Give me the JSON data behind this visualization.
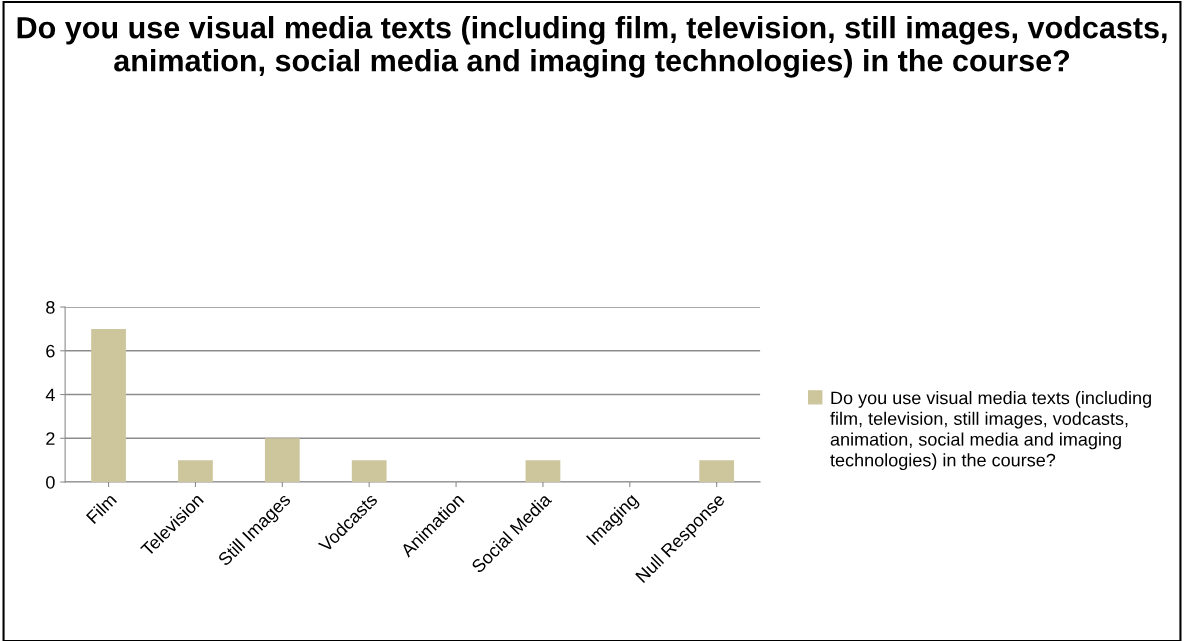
{
  "chart_data": {
    "type": "bar",
    "title": "Do you use visual media texts (including film, television, still images, vodcasts, animation, social media and imaging technologies) in the course?",
    "categories": [
      "Film",
      "Television",
      "Still Images",
      "Vodcasts",
      "Animation",
      "Social Media",
      "Imaging",
      "Null Response"
    ],
    "series": [
      {
        "name": "Do you use visual media texts (including film, television, still images, vodcasts, animation, social media and imaging technologies) in the course?",
        "color": "#cdc59b",
        "values": [
          7,
          1,
          2,
          1,
          0,
          1,
          0,
          1
        ]
      }
    ],
    "ylim": [
      0,
      8
    ],
    "yticks": [
      0,
      2,
      4,
      6,
      8
    ],
    "grid": "y",
    "legend": "right"
  }
}
